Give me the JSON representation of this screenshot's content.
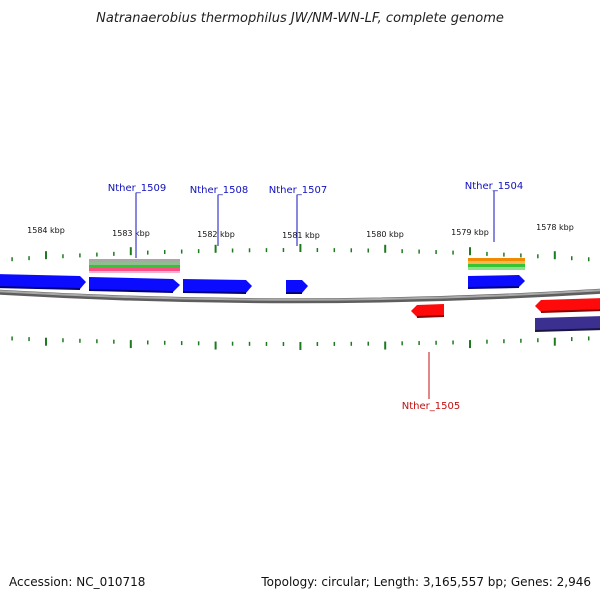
{
  "title": "Natranaerobius thermophilus JW/NM-WN-LF, complete genome",
  "footer": {
    "accession": "Accession: NC_010718",
    "summary": "Topology: circular; Length: 3,165,557 bp; Genes: 2,946"
  },
  "scale_labels": [
    "1584 kbp",
    "1583 kbp",
    "1582 kbp",
    "1581 kbp",
    "1580 kbp",
    "1579 kbp",
    "1578 kbp"
  ],
  "gene_labels": [
    {
      "text": "Nther_1509",
      "strand": "forward",
      "color": "#1010c0"
    },
    {
      "text": "Nther_1508",
      "strand": "forward",
      "color": "#1010c0"
    },
    {
      "text": "Nther_1507",
      "strand": "forward",
      "color": "#1010c0"
    },
    {
      "text": "Nther_1504",
      "strand": "forward",
      "color": "#1010c0"
    },
    {
      "text": "Nther_1505",
      "strand": "reverse",
      "color": "#c01010"
    }
  ],
  "colors": {
    "forward_gene": "#0b0bff",
    "reverse_gene": "#ff0a0a",
    "reverse_other": "#3b2f8f",
    "backbone": "#808080",
    "ticks": "#1f7a1f",
    "feature_gray": "#a8a8a8",
    "feature_green": "#35c435",
    "feature_orange": "#f08a00",
    "feature_pink": "#ff4d88"
  }
}
